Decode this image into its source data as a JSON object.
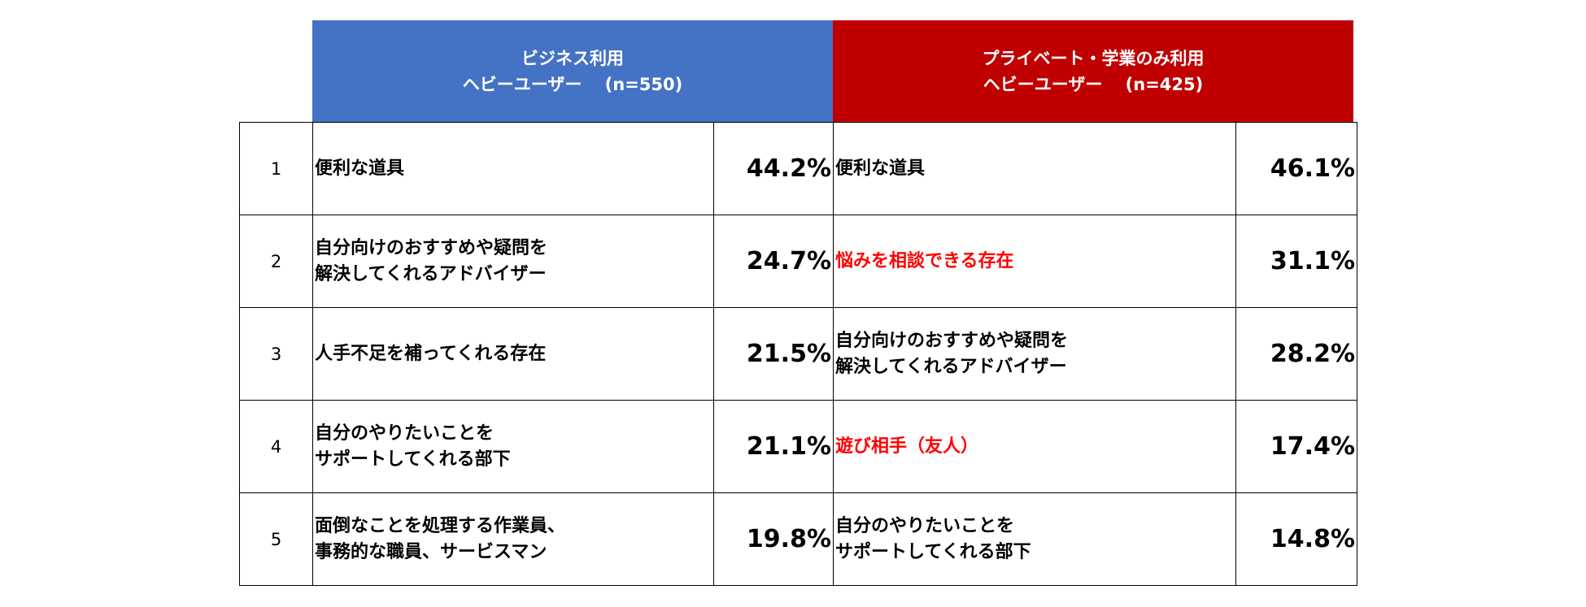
{
  "headers": {
    "business": {
      "line1": "ビジネス利用",
      "line2": "ヘビーユーザー　 (n=550)",
      "color": "#4472C4"
    },
    "private": {
      "line1": "プライベート・学業のみ利用",
      "line2": "ヘビーユーザー　 (n=425)",
      "color": "#C00000"
    }
  },
  "highlight_color": "#FF0000",
  "rows": [
    {
      "rank": "1",
      "business": {
        "lines": [
          "便利な道具",
          ""
        ],
        "pct": "44.2%"
      },
      "private": {
        "lines": [
          "便利な道具",
          ""
        ],
        "pct": "46.1%",
        "highlight": false
      }
    },
    {
      "rank": "2",
      "business": {
        "lines": [
          "自分向けのおすすめや疑問を",
          "解決してくれるアドバイザー"
        ],
        "pct": "24.7%"
      },
      "private": {
        "lines": [
          "悩みを相談できる存在",
          ""
        ],
        "pct": "31.1%",
        "highlight": true
      }
    },
    {
      "rank": "3",
      "business": {
        "lines": [
          "人手不足を補ってくれる存在",
          ""
        ],
        "pct": "21.5%"
      },
      "private": {
        "lines": [
          "自分向けのおすすめや疑問を",
          "解決してくれるアドバイザー"
        ],
        "pct": "28.2%",
        "highlight": false
      }
    },
    {
      "rank": "4",
      "business": {
        "lines": [
          "自分のやりたいことを",
          "サポートしてくれる部下"
        ],
        "pct": "21.1%"
      },
      "private": {
        "lines": [
          "遊び相手（友人）",
          ""
        ],
        "pct": "17.4%",
        "highlight": true
      }
    },
    {
      "rank": "5",
      "business": {
        "lines": [
          "面倒なことを処理する作業員、",
          "事務的な職員、サービスマン"
        ],
        "pct": "19.8%"
      },
      "private": {
        "lines": [
          "自分のやりたいことを",
          "サポートしてくれる部下"
        ],
        "pct": "14.8%",
        "highlight": false
      }
    }
  ]
}
